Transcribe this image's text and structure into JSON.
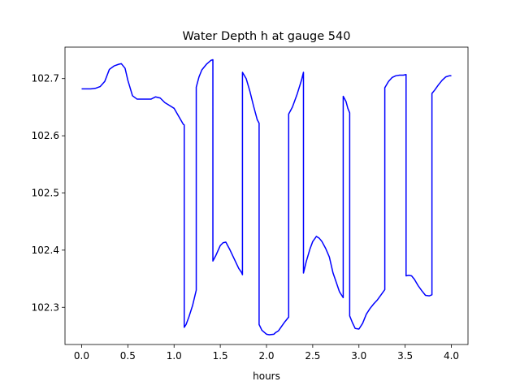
{
  "chart_data": {
    "type": "line",
    "title": "Water Depth h at gauge 540",
    "xlabel": "hours",
    "ylabel": "",
    "xlim": [
      -0.18,
      4.18
    ],
    "ylim": [
      102.235,
      102.755
    ],
    "xticks": [
      0.0,
      0.5,
      1.0,
      1.5,
      2.0,
      2.5,
      3.0,
      3.5,
      4.0
    ],
    "xtick_labels": [
      "0.0",
      "0.5",
      "1.0",
      "1.5",
      "2.0",
      "2.5",
      "3.0",
      "3.5",
      "4.0"
    ],
    "yticks": [
      102.3,
      102.4,
      102.5,
      102.6,
      102.7
    ],
    "ytick_labels": [
      "102.3",
      "102.4",
      "102.5",
      "102.6",
      "102.7"
    ],
    "grid": false,
    "series": [
      {
        "color": "#0000ff",
        "x": [
          0.0,
          0.1,
          0.15,
          0.2,
          0.25,
          0.3,
          0.35,
          0.4,
          0.43,
          0.47,
          0.5,
          0.55,
          0.6,
          0.65,
          0.7,
          0.75,
          0.8,
          0.85,
          0.9,
          0.95,
          1.0,
          1.05,
          1.1,
          1.11,
          1.11,
          1.13,
          1.16,
          1.2,
          1.24,
          1.24,
          1.27,
          1.3,
          1.35,
          1.4,
          1.42,
          1.42,
          1.45,
          1.5,
          1.53,
          1.56,
          1.6,
          1.65,
          1.7,
          1.73,
          1.74,
          1.74,
          1.78,
          1.82,
          1.86,
          1.9,
          1.92,
          1.92,
          1.95,
          2.0,
          2.03,
          2.08,
          2.1,
          2.13,
          2.16,
          2.2,
          2.24,
          2.24,
          2.28,
          2.33,
          2.38,
          2.4,
          2.4,
          2.43,
          2.47,
          2.5,
          2.54,
          2.57,
          2.6,
          2.64,
          2.68,
          2.72,
          2.75,
          2.79,
          2.83,
          2.83,
          2.86,
          2.88,
          2.9,
          2.9,
          2.93,
          2.96,
          3.0,
          3.04,
          3.08,
          3.12,
          3.16,
          3.2,
          3.24,
          3.28,
          3.28,
          3.32,
          3.36,
          3.4,
          3.44,
          3.48,
          3.51,
          3.51,
          3.54,
          3.57,
          3.6,
          3.64,
          3.68,
          3.72,
          3.76,
          3.79,
          3.79,
          3.82,
          3.86,
          3.9,
          3.94,
          3.98,
          4.0
        ],
        "y": [
          102.682,
          102.682,
          102.683,
          102.686,
          102.695,
          102.716,
          102.722,
          102.725,
          102.726,
          102.718,
          102.697,
          102.67,
          102.664,
          102.664,
          102.664,
          102.664,
          102.668,
          102.666,
          102.658,
          102.653,
          102.648,
          102.634,
          102.62,
          102.619,
          102.265,
          102.27,
          102.283,
          102.303,
          102.33,
          102.685,
          102.703,
          102.715,
          102.725,
          102.732,
          102.733,
          102.381,
          102.39,
          102.408,
          102.413,
          102.414,
          102.402,
          102.385,
          102.368,
          102.361,
          102.357,
          102.711,
          102.7,
          102.678,
          102.652,
          102.628,
          102.622,
          102.27,
          102.26,
          102.253,
          102.252,
          102.253,
          102.256,
          102.259,
          102.266,
          102.275,
          102.283,
          102.638,
          102.65,
          102.672,
          102.698,
          102.711,
          102.36,
          102.38,
          102.402,
          102.415,
          102.424,
          102.421,
          102.415,
          102.403,
          102.388,
          102.36,
          102.346,
          102.327,
          102.317,
          102.669,
          102.66,
          102.648,
          102.64,
          102.285,
          102.273,
          102.263,
          102.262,
          102.272,
          102.288,
          102.298,
          102.306,
          102.313,
          102.322,
          102.331,
          102.684,
          102.695,
          102.702,
          102.705,
          102.706,
          102.706,
          102.707,
          102.355,
          102.356,
          102.355,
          102.349,
          102.338,
          102.329,
          102.321,
          102.32,
          102.322,
          102.674,
          102.68,
          102.689,
          102.697,
          102.703,
          102.705,
          102.705
        ]
      }
    ]
  }
}
